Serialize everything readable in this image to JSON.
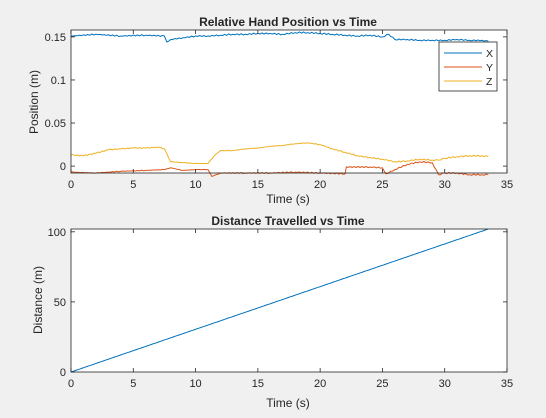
{
  "colors": {
    "figure_bg": "#f0f0f0",
    "axes_bg": "#ffffff",
    "axis": "#262626",
    "X": "#0072bd",
    "Y": "#d95319",
    "Z": "#edb120"
  },
  "chart_data": [
    {
      "type": "line",
      "title": "Relative Hand Position vs Time",
      "xlabel": "Time (s)",
      "ylabel": "Position (m)",
      "xlim": [
        0,
        35
      ],
      "ylim": [
        -0.008,
        0.158
      ],
      "xticks": [
        0,
        5,
        10,
        15,
        20,
        25,
        30,
        35
      ],
      "xtick_labels": [
        "0",
        "5",
        "10",
        "15",
        "20",
        "25",
        "30",
        "35"
      ],
      "yticks": [
        0,
        0.05,
        0.1,
        0.15
      ],
      "ytick_labels": [
        "0",
        "0.05",
        "0.1",
        "0.15"
      ],
      "grid": false,
      "legend_position": "top-right",
      "series": [
        {
          "name": "X",
          "color": "#0072bd",
          "x": [
            0,
            2,
            4,
            6,
            7.5,
            7.7,
            8,
            9,
            10,
            11,
            12,
            13,
            14,
            15,
            16,
            17,
            18,
            19,
            20,
            21,
            22,
            23,
            24,
            25,
            25.5,
            26,
            27,
            28,
            29,
            30,
            31,
            32,
            33,
            33.5
          ],
          "y": [
            0.151,
            0.153,
            0.151,
            0.152,
            0.151,
            0.144,
            0.147,
            0.149,
            0.151,
            0.151,
            0.152,
            0.153,
            0.153,
            0.154,
            0.154,
            0.153,
            0.155,
            0.155,
            0.154,
            0.153,
            0.152,
            0.151,
            0.152,
            0.15,
            0.153,
            0.147,
            0.147,
            0.146,
            0.146,
            0.146,
            0.147,
            0.146,
            0.146,
            0.145
          ]
        },
        {
          "name": "Y",
          "color": "#d95319",
          "x": [
            0,
            2,
            4,
            6,
            7.5,
            8,
            9,
            10,
            11,
            11.3,
            12,
            14,
            16,
            18,
            20,
            22,
            22.1,
            24,
            25,
            25.3,
            26,
            27,
            28,
            29,
            29.5,
            30,
            31,
            32,
            33,
            33.5
          ],
          "y": [
            -0.007,
            -0.008,
            -0.006,
            -0.005,
            -0.004,
            -0.002,
            -0.005,
            -0.004,
            -0.004,
            -0.012,
            -0.008,
            -0.008,
            -0.008,
            -0.007,
            -0.008,
            -0.009,
            -0.001,
            -0.001,
            -0.002,
            -0.009,
            -0.004,
            0.002,
            0.005,
            0.004,
            -0.01,
            -0.008,
            -0.008,
            -0.01,
            -0.01,
            -0.01
          ]
        },
        {
          "name": "Z",
          "color": "#edb120",
          "x": [
            0,
            1,
            2,
            3,
            4,
            5,
            6,
            7,
            7.5,
            8,
            9,
            10,
            11,
            11.5,
            12,
            13,
            14,
            15,
            16,
            17,
            18,
            19,
            20,
            21,
            22,
            23,
            24,
            25,
            26,
            27,
            28,
            29,
            29.5,
            30,
            31,
            32,
            33,
            33.5
          ],
          "y": [
            0.013,
            0.012,
            0.015,
            0.019,
            0.02,
            0.021,
            0.021,
            0.022,
            0.02,
            0.005,
            0.004,
            0.003,
            0.003,
            0.012,
            0.018,
            0.018,
            0.02,
            0.021,
            0.023,
            0.024,
            0.026,
            0.027,
            0.025,
            0.02,
            0.016,
            0.012,
            0.01,
            0.008,
            0.005,
            0.006,
            0.008,
            0.007,
            0.007,
            0.009,
            0.011,
            0.012,
            0.012,
            0.011
          ]
        }
      ]
    },
    {
      "type": "line",
      "title": "Distance Travelled vs Time",
      "xlabel": "Time (s)",
      "ylabel": "Distance (m)",
      "xlim": [
        0,
        35
      ],
      "ylim": [
        0,
        102
      ],
      "xticks": [
        0,
        5,
        10,
        15,
        20,
        25,
        30,
        35
      ],
      "xtick_labels": [
        "0",
        "5",
        "10",
        "15",
        "20",
        "25",
        "30",
        "35"
      ],
      "yticks": [
        0,
        50,
        100
      ],
      "ytick_labels": [
        "0",
        "50",
        "100"
      ],
      "grid": false,
      "series": [
        {
          "color": "#0072bd",
          "x": [
            0,
            33.5
          ],
          "y": [
            0,
            102
          ]
        }
      ]
    }
  ]
}
